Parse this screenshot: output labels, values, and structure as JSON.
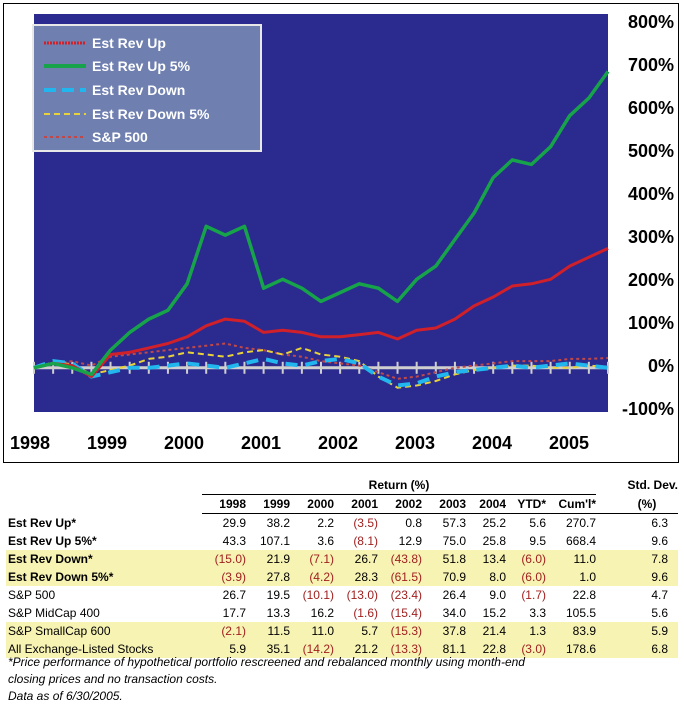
{
  "chart_data": {
    "type": "line",
    "ylim": [
      -100,
      800
    ],
    "yticks": [
      "800%",
      "700%",
      "600%",
      "500%",
      "400%",
      "300%",
      "200%",
      "100%",
      "0%",
      "-100%"
    ],
    "xticks": [
      "1998",
      "1999",
      "2000",
      "2001",
      "2002",
      "2003",
      "2004",
      "2005"
    ],
    "x": [
      1998.0,
      1998.25,
      1998.5,
      1998.75,
      1999.0,
      1999.25,
      1999.5,
      1999.75,
      2000.0,
      2000.25,
      2000.5,
      2000.75,
      2001.0,
      2001.25,
      2001.5,
      2001.75,
      2002.0,
      2002.25,
      2002.5,
      2002.75,
      2003.0,
      2003.25,
      2003.5,
      2003.75,
      2004.0,
      2004.25,
      2004.5,
      2004.75,
      2005.0,
      2005.25,
      2005.5
    ],
    "series": [
      {
        "name": "Est Rev Up",
        "color": "#d0202a",
        "dash": "",
        "values": [
          0,
          10,
          5,
          -20,
          30,
          35,
          45,
          55,
          70,
          95,
          110,
          105,
          80,
          85,
          80,
          70,
          70,
          75,
          80,
          65,
          85,
          90,
          110,
          140,
          160,
          185,
          190,
          200,
          230,
          250,
          270
        ]
      },
      {
        "name": "Est Rev Up 5%",
        "color": "#17a34a",
        "dash": "",
        "values": [
          0,
          10,
          0,
          -15,
          40,
          80,
          110,
          130,
          190,
          320,
          300,
          320,
          180,
          200,
          180,
          150,
          170,
          190,
          180,
          150,
          200,
          230,
          290,
          350,
          430,
          470,
          460,
          500,
          570,
          610,
          670
        ]
      },
      {
        "name": "Est Rev Down",
        "color": "#22b6ee",
        "dash": "12 8",
        "values": [
          0,
          15,
          10,
          -20,
          -10,
          0,
          0,
          5,
          10,
          5,
          0,
          10,
          20,
          10,
          5,
          15,
          20,
          10,
          -20,
          -40,
          -35,
          -20,
          -10,
          -5,
          0,
          5,
          0,
          5,
          10,
          5,
          0
        ]
      },
      {
        "name": "Est Rev Down 5%",
        "color": "#e8d23a",
        "dash": "6 4",
        "values": [
          0,
          12,
          8,
          -15,
          -5,
          5,
          20,
          25,
          35,
          30,
          25,
          35,
          40,
          30,
          45,
          30,
          25,
          15,
          -20,
          -45,
          -40,
          -30,
          -15,
          -5,
          0,
          5,
          5,
          0,
          0,
          5,
          2
        ]
      },
      {
        "name": "S&P 500",
        "color": "#c04848",
        "dash": "3 3",
        "values": [
          0,
          10,
          15,
          5,
          25,
          30,
          35,
          40,
          45,
          50,
          55,
          45,
          40,
          30,
          25,
          15,
          10,
          5,
          -10,
          -25,
          -20,
          -10,
          0,
          5,
          10,
          15,
          15,
          15,
          20,
          20,
          22
        ]
      }
    ]
  },
  "table": {
    "group_header": "Return (%)",
    "std_header_1": "Std. Dev.",
    "std_header_2": "(%)",
    "columns": [
      "1998",
      "1999",
      "2000",
      "2001",
      "2002",
      "2003",
      "2004",
      "YTD*",
      "Cum'l*"
    ],
    "rows": [
      {
        "name": "Est Rev Up*",
        "bold": true,
        "highlight": false,
        "values": [
          "29.9",
          "38.2",
          "2.2",
          "(3.5)",
          "0.8",
          "57.3",
          "25.2",
          "5.6",
          "270.7"
        ],
        "std": "6.3"
      },
      {
        "name": "Est Rev Up 5%*",
        "bold": true,
        "highlight": false,
        "values": [
          "43.3",
          "107.1",
          "3.6",
          "(8.1)",
          "12.9",
          "75.0",
          "25.8",
          "9.5",
          "668.4"
        ],
        "std": "9.6"
      },
      {
        "name": "Est Rev Down*",
        "bold": true,
        "highlight": true,
        "values": [
          "(15.0)",
          "21.9",
          "(7.1)",
          "26.7",
          "(43.8)",
          "51.8",
          "13.4",
          "(6.0)",
          "11.0"
        ],
        "std": "7.8"
      },
      {
        "name": "Est Rev Down 5%*",
        "bold": true,
        "highlight": true,
        "values": [
          "(3.9)",
          "27.8",
          "(4.2)",
          "28.3",
          "(61.5)",
          "70.9",
          "8.0",
          "(6.0)",
          "1.0"
        ],
        "std": "9.6"
      },
      {
        "name": "S&P 500",
        "bold": false,
        "highlight": false,
        "values": [
          "26.7",
          "19.5",
          "(10.1)",
          "(13.0)",
          "(23.4)",
          "26.4",
          "9.0",
          "(1.7)",
          "22.8"
        ],
        "std": "4.7"
      },
      {
        "name": "S&P MidCap 400",
        "bold": false,
        "highlight": false,
        "values": [
          "17.7",
          "13.3",
          "16.2",
          "(1.6)",
          "(15.4)",
          "34.0",
          "15.2",
          "3.3",
          "105.5"
        ],
        "std": "5.6"
      },
      {
        "name": "S&P SmallCap 600",
        "bold": false,
        "highlight": true,
        "values": [
          "(2.1)",
          "11.5",
          "11.0",
          "5.7",
          "(15.3)",
          "37.8",
          "21.4",
          "1.3",
          "83.9"
        ],
        "std": "5.9"
      },
      {
        "name": "All Exchange-Listed Stocks",
        "bold": false,
        "highlight": true,
        "values": [
          "5.9",
          "35.1",
          "(14.2)",
          "21.2",
          "(13.3)",
          "81.1",
          "22.8",
          "(3.0)",
          "178.6"
        ],
        "std": "6.8"
      }
    ]
  },
  "footnote": {
    "line1": "*Price performance of hypothetical portfolio rescreened and rebalanced monthly using month-end",
    "line2": "closing prices and no transaction costs.",
    "line3": "Data as of 6/30/2005."
  }
}
